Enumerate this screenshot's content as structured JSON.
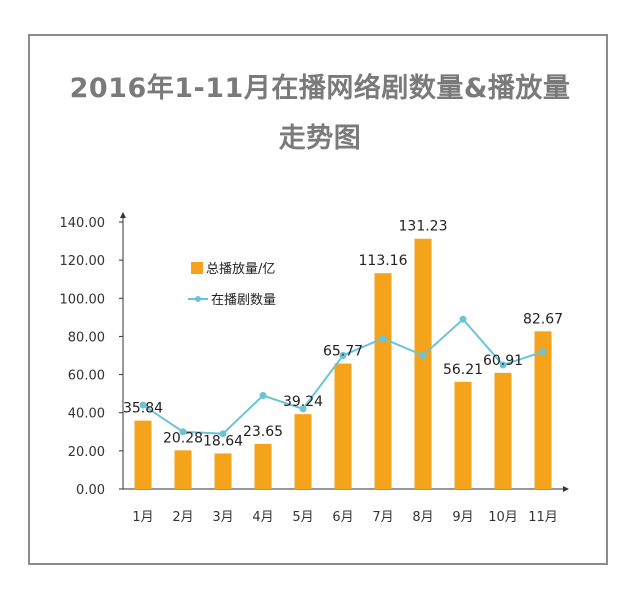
{
  "chart_data": {
    "type": "bar",
    "title_line1": "2016年1-11月在播网络剧数量&播放量",
    "title_line2": "走势图",
    "categories": [
      "1月",
      "2月",
      "3月",
      "4月",
      "5月",
      "6月",
      "7月",
      "8月",
      "9月",
      "10月",
      "11月"
    ],
    "series": [
      {
        "name": "总播放量/亿",
        "type": "bar",
        "color": "#f5a31a",
        "values": [
          35.84,
          20.28,
          18.64,
          23.65,
          39.24,
          65.77,
          113.16,
          131.23,
          56.21,
          60.91,
          82.67
        ],
        "labels": [
          "35.84",
          "20.28",
          "18.64",
          "23.65",
          "39.24",
          "65.77",
          "113.16",
          "131.23",
          "56.21",
          "60.91",
          "82.67"
        ]
      },
      {
        "name": "在播剧数量",
        "type": "line",
        "color": "#6cc3d5",
        "values": [
          44,
          30,
          29,
          49,
          42,
          70,
          79,
          70,
          89,
          65,
          72
        ]
      }
    ],
    "ylim": [
      0,
      140
    ],
    "yticks": [
      "0.00",
      "20.00",
      "40.00",
      "60.00",
      "80.00",
      "100.00",
      "120.00",
      "140.00"
    ],
    "ytick_values": [
      0,
      20,
      40,
      60,
      80,
      100,
      120,
      140
    ],
    "legend_position": "top-left inside plot"
  }
}
